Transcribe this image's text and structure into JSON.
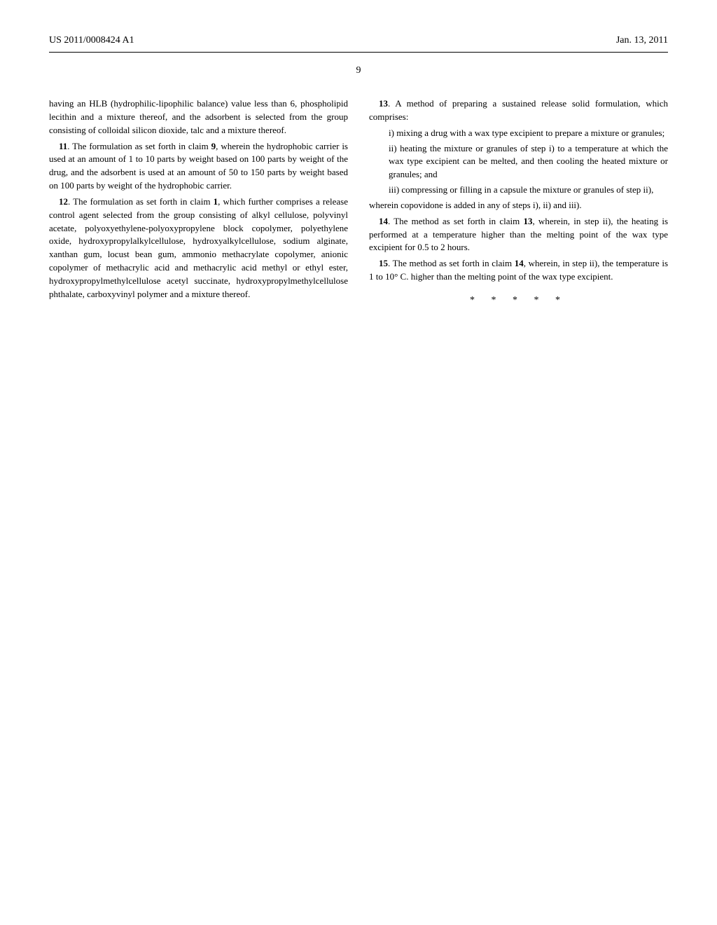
{
  "header": {
    "publication_number": "US 2011/0008424 A1",
    "date": "Jan. 13, 2011"
  },
  "page_number": "9",
  "paragraphs": {
    "p1": "having an HLB (hydrophilic-lipophilic balance) value less than 6, phospholipid lecithin and a mixture thereof, and the adsorbent is selected from the group consisting of colloidal silicon dioxide, talc and a mixture thereof.",
    "p2_prefix": "11",
    "p2": ". The formulation as set forth in claim ",
    "p2_bold": "9",
    "p2_suffix": ", wherein the hydrophobic carrier is used at an amount of 1 to 10 parts by weight based on 100 parts by weight of the drug, and the adsorbent is used at an amount of 50 to 150 parts by weight based on 100 parts by weight of the hydrophobic carrier.",
    "p3_prefix": "12",
    "p3": ". The formulation as set forth in claim ",
    "p3_bold": "1",
    "p3_suffix": ", which further comprises a release control agent selected from the group consisting of alkyl cellulose, polyvinyl acetate, polyoxyethylene-polyoxypropylene block copolymer, polyethylene oxide, hydroxypropylalkylcellulose, hydroxyalkylcellulose, sodium alginate, xanthan gum, locust bean gum, ammonio methacrylate copolymer, anionic copolymer of methacrylic acid and methacrylic acid methyl or ethyl ester, hydroxypropylmethylcellulose acetyl succinate, hydroxypropylmethylcellulose phthalate, carboxyvinyl polymer and a mixture thereof.",
    "p4_prefix": "13",
    "p4": ". A method of preparing a sustained release solid formulation, which comprises:",
    "p4_i": "i) mixing a drug with a wax type excipient to prepare a mixture or granules;",
    "p4_ii": "ii) heating the mixture or granules of step i) to a temperature at which the wax type excipient can be melted, and then cooling the heated mixture or granules; and",
    "p4_iii": "iii) compressing or filling in a capsule the mixture or granules of step ii),",
    "p4_wherein": "wherein copovidone is added in any of steps i), ii) and iii).",
    "p5_prefix": "14",
    "p5": ". The method as set forth in claim ",
    "p5_bold": "13",
    "p5_suffix": ", wherein, in step ii), the heating is performed at a temperature higher than the melting point of the wax type excipient for 0.5 to 2 hours.",
    "p6_prefix": "15",
    "p6": ". The method as set forth in claim ",
    "p6_bold": "14",
    "p6_suffix": ", wherein, in step ii), the temperature is 1 to 10° C. higher than the melting point of the wax type excipient.",
    "closing": "* * * * *"
  }
}
